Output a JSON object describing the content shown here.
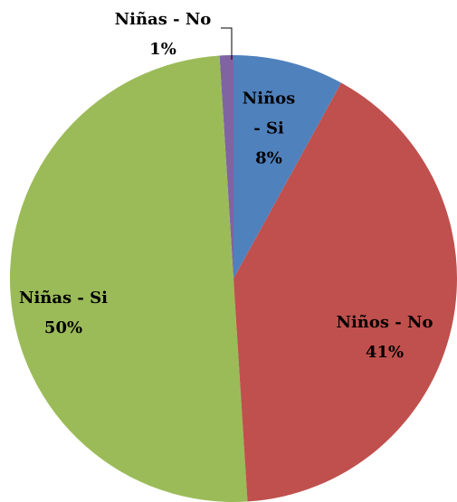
{
  "chart_data": {
    "type": "pie",
    "categories": [
      "Niños - Si",
      "Niños - No",
      "Niñas - Si",
      "Niñas - No"
    ],
    "values": [
      8,
      41,
      50,
      1
    ],
    "value_labels": [
      "8%",
      "41%",
      "50%",
      "1%"
    ],
    "colors": [
      "#4f81bd",
      "#c0504d",
      "#9bbb59",
      "#8064a2"
    ]
  }
}
